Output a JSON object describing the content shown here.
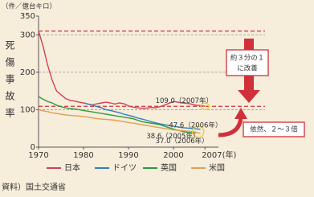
{
  "chart_data": {
    "type": "line",
    "y_label": "（件／億台キロ）",
    "y_title": "死傷事故率",
    "x": [
      1970,
      1971,
      1972,
      1973,
      1974,
      1975,
      1976,
      1977,
      1978,
      1979,
      1980,
      1981,
      1982,
      1983,
      1984,
      1985,
      1986,
      1987,
      1988,
      1989,
      1990,
      1991,
      1992,
      1993,
      1994,
      1995,
      1996,
      1997,
      1998,
      1999,
      2000,
      2001,
      2002,
      2003,
      2004,
      2005,
      2006,
      2007
    ],
    "series": [
      {
        "name": "日本",
        "color": "#d0405a",
        "values": [
          310,
          270,
          220,
          180,
          150,
          140,
          130,
          125,
          123,
          120,
          118,
          115,
          113,
          116,
          118,
          120,
          118,
          115,
          118,
          116,
          110,
          107,
          105,
          104,
          104,
          106,
          105,
          108,
          112,
          117,
          122,
          120,
          118,
          117,
          115,
          112,
          111,
          109.0
        ]
      },
      {
        "name": "ドイツ",
        "color": "#2f7fc1",
        "values": [
          null,
          null,
          null,
          null,
          null,
          null,
          null,
          null,
          null,
          null,
          118,
          115,
          112,
          108,
          105,
          100,
          98,
          95,
          92,
          88,
          85,
          82,
          78,
          75,
          72,
          68,
          65,
          62,
          60,
          58,
          56,
          54,
          52,
          51,
          50,
          49,
          47.6,
          null
        ]
      },
      {
        "name": "英国",
        "color": "#2e9a3e",
        "values": [
          135,
          128,
          122,
          118,
          112,
          108,
          105,
          103,
          102,
          100,
          98,
          96,
          94,
          92,
          90,
          88,
          86,
          84,
          82,
          80,
          78,
          76,
          72,
          68,
          66,
          64,
          62,
          60,
          56,
          52,
          48,
          45,
          42,
          40,
          39,
          38.6,
          null,
          null
        ]
      },
      {
        "name": "米国",
        "color": "#e0a050",
        "values": [
          100,
          97,
          95,
          92,
          90,
          88,
          86,
          85,
          84,
          83,
          82,
          80,
          78,
          76,
          75,
          74,
          73,
          72,
          70,
          68,
          66,
          64,
          62,
          60,
          58,
          56,
          54,
          52,
          50,
          48,
          46,
          45,
          44,
          43,
          42,
          40,
          37.0,
          null
        ]
      }
    ],
    "xlim": [
      1970,
      2010
    ],
    "xticks": [
      1970,
      1980,
      1990,
      2000,
      {
        "value": 2007,
        "label": "2007(年)"
      }
    ],
    "ylim": [
      0,
      350
    ],
    "yticks": [
      0,
      100,
      200,
      300,
      350
    ],
    "grid": true,
    "annotations": [
      "109.0（2007年）",
      "47.6（2006年）",
      "38.6（2005年）",
      "37.0（2006年）"
    ],
    "callout_improve": [
      "約３分の１",
      "に改善"
    ],
    "callout_still": "依然、２～３倍",
    "source": "資料）国土交通省"
  }
}
